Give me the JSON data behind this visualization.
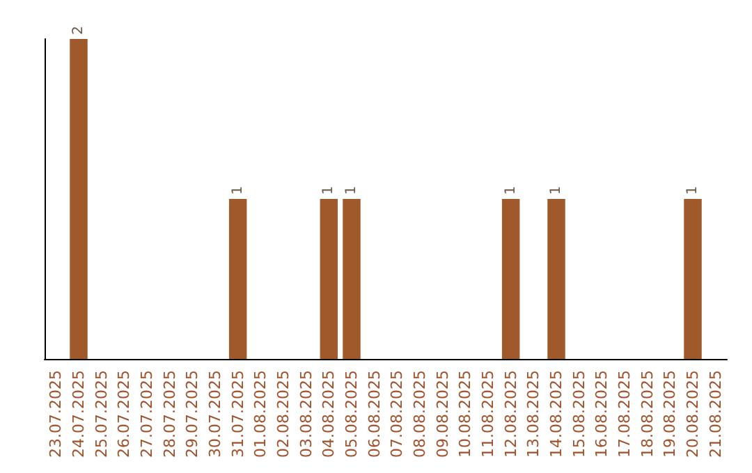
{
  "chart_data": {
    "type": "bar",
    "categories": [
      "23.07.2025",
      "24.07.2025",
      "25.07.2025",
      "26.07.2025",
      "27.07.2025",
      "28.07.2025",
      "29.07.2025",
      "30.07.2025",
      "31.07.2025",
      "01.08.2025",
      "02.08.2025",
      "03.08.2025",
      "04.08.2025",
      "05.08.2025",
      "06.08.2025",
      "07.08.2025",
      "08.08.2025",
      "09.08.2025",
      "10.08.2025",
      "11.08.2025",
      "12.08.2025",
      "13.08.2025",
      "14.08.2025",
      "15.08.2025",
      "16.08.2025",
      "17.08.2025",
      "18.08.2025",
      "19.08.2025",
      "20.08.2025",
      "21.08.2025"
    ],
    "values": [
      0,
      2,
      0,
      0,
      0,
      0,
      0,
      0,
      1,
      0,
      0,
      0,
      1,
      1,
      0,
      0,
      0,
      0,
      0,
      0,
      1,
      0,
      1,
      0,
      0,
      0,
      0,
      0,
      1,
      0
    ],
    "value_labels": [
      null,
      "2",
      null,
      null,
      null,
      null,
      null,
      null,
      "1",
      null,
      null,
      null,
      "1",
      "1",
      null,
      null,
      null,
      null,
      null,
      null,
      "1",
      null,
      "1",
      null,
      null,
      null,
      null,
      null,
      "1",
      null
    ],
    "color": "#a0592a"
  }
}
